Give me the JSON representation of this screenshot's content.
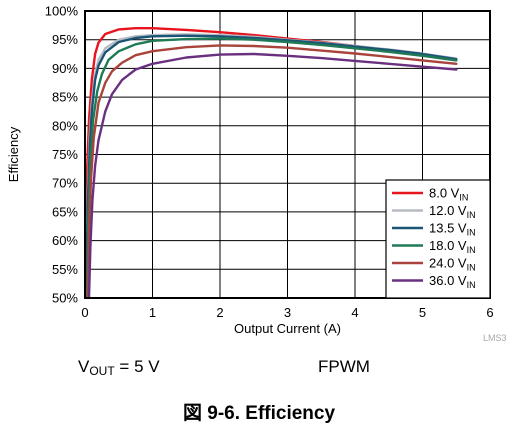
{
  "chart_data": {
    "type": "line",
    "title": "",
    "xlabel": "Output Current (A)",
    "ylabel": "Efficiency",
    "xlim": [
      0,
      6
    ],
    "ylim": [
      50,
      100
    ],
    "x_ticks": [
      "0",
      "1",
      "2",
      "3",
      "4",
      "5",
      "6"
    ],
    "y_ticks": [
      "50%",
      "55%",
      "60%",
      "65%",
      "70%",
      "75%",
      "80%",
      "85%",
      "90%",
      "95%",
      "100%"
    ],
    "grid": true,
    "legend_position": "bottom-right",
    "series": [
      {
        "name": "8.0 V",
        "name_sub": "IN",
        "color": "#e8141e",
        "x": [
          0.01,
          0.03,
          0.06,
          0.1,
          0.15,
          0.2,
          0.3,
          0.5,
          0.75,
          1,
          1.5,
          2,
          2.5,
          3,
          3.5,
          4,
          4.5,
          5,
          5.5
        ],
        "y": [
          55,
          72,
          81,
          88,
          92.5,
          94.5,
          96,
          96.8,
          97,
          97,
          96.7,
          96.3,
          95.8,
          95.2,
          94.6,
          93.9,
          93.2,
          92.4,
          91.5
        ]
      },
      {
        "name": "12.0 V",
        "name_sub": "IN",
        "color": "#b6bcc4",
        "x": [
          0.02,
          0.04,
          0.07,
          0.1,
          0.15,
          0.2,
          0.3,
          0.5,
          0.75,
          1,
          1.5,
          2,
          2.5,
          3,
          3.5,
          4,
          4.5,
          5,
          5.5
        ],
        "y": [
          52,
          68,
          78,
          84,
          89,
          91.5,
          93.5,
          95,
          95.6,
          95.8,
          95.9,
          95.8,
          95.5,
          95,
          94.5,
          93.9,
          93.3,
          92.6,
          91.7
        ]
      },
      {
        "name": "13.5 V",
        "name_sub": "IN",
        "color": "#1a5575",
        "x": [
          0.02,
          0.04,
          0.07,
          0.1,
          0.15,
          0.2,
          0.3,
          0.5,
          0.75,
          1,
          1.5,
          2,
          2.5,
          3,
          3.5,
          4,
          4.5,
          5,
          5.5
        ],
        "y": [
          51,
          66,
          76,
          82.5,
          88,
          90.5,
          92.8,
          94.6,
          95.3,
          95.6,
          95.7,
          95.6,
          95.3,
          94.9,
          94.4,
          93.8,
          93.2,
          92.5,
          91.6
        ]
      },
      {
        "name": "18.0 V",
        "name_sub": "IN",
        "color": "#1f7a55",
        "x": [
          0.03,
          0.05,
          0.08,
          0.12,
          0.18,
          0.25,
          0.35,
          0.5,
          0.75,
          1,
          1.5,
          2,
          2.5,
          3,
          3.5,
          4,
          4.5,
          5,
          5.5
        ],
        "y": [
          50,
          64,
          74,
          81,
          86,
          89,
          91.5,
          93,
          94.2,
          94.8,
          95.1,
          95.2,
          95,
          94.6,
          94.1,
          93.5,
          92.9,
          92.2,
          91.4
        ]
      },
      {
        "name": "24.0 V",
        "name_sub": "IN",
        "color": "#a8443c",
        "x": [
          0.04,
          0.06,
          0.09,
          0.13,
          0.2,
          0.3,
          0.4,
          0.55,
          0.75,
          1,
          1.5,
          2,
          2.5,
          3,
          3.5,
          4,
          4.5,
          5,
          5.5
        ],
        "y": [
          50,
          62,
          71,
          78,
          84,
          87.5,
          89.5,
          91,
          92.3,
          93,
          93.7,
          94,
          93.9,
          93.6,
          93.1,
          92.6,
          92,
          91.4,
          90.8
        ]
      },
      {
        "name": "36.0 V",
        "name_sub": "IN",
        "color": "#6a3080",
        "x": [
          0.06,
          0.08,
          0.11,
          0.15,
          0.2,
          0.3,
          0.4,
          0.55,
          0.75,
          1,
          1.5,
          2,
          2.5,
          3,
          3.5,
          4,
          4.5,
          5,
          5.5
        ],
        "y": [
          50,
          59,
          67,
          73,
          77.5,
          82.5,
          85.5,
          88,
          89.8,
          90.8,
          91.9,
          92.4,
          92.5,
          92.2,
          91.8,
          91.3,
          90.8,
          90.3,
          89.8
        ]
      }
    ]
  },
  "conditions": {
    "vout_prefix": "V",
    "vout_sub": "OUT",
    "vout_value": "= 5 V",
    "mode": "FPWM"
  },
  "caption": "図 9-6. Efficiency",
  "watermark": "LMS3"
}
